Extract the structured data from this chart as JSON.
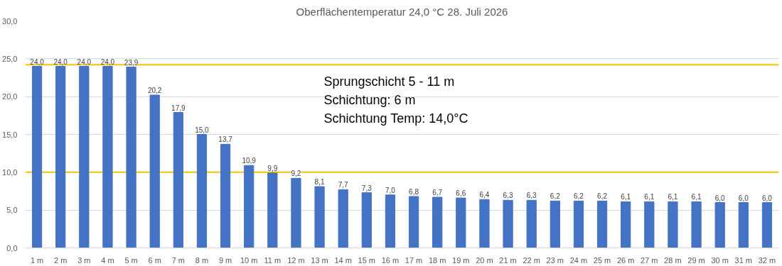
{
  "chart_data": {
    "type": "bar",
    "title": "Oberflächentemperatur 24,0 °C 28. Juli 2026",
    "categories": [
      "1 m",
      "2 m",
      "3 m",
      "4 m",
      "5 m",
      "6 m",
      "7 m",
      "8 m",
      "9 m",
      "10 m",
      "11 m",
      "12 m",
      "13 m",
      "14 m",
      "15 m",
      "16 m",
      "17 m",
      "18 m",
      "19 m",
      "20 m",
      "21 m",
      "22 m",
      "23 m",
      "24 m",
      "25 m",
      "26 m",
      "27 m",
      "28 m",
      "29 m",
      "30 m",
      "31 m",
      "32 m"
    ],
    "values": [
      24.0,
      24.0,
      24.0,
      24.0,
      23.9,
      20.2,
      17.9,
      15.0,
      13.7,
      10.9,
      9.9,
      9.2,
      8.1,
      7.7,
      7.3,
      7.0,
      6.8,
      6.7,
      6.6,
      6.4,
      6.3,
      6.3,
      6.2,
      6.2,
      6.2,
      6.1,
      6.1,
      6.1,
      6.1,
      6.0,
      6.0,
      6.0
    ],
    "value_labels": [
      "24,0",
      "24,0",
      "24,0",
      "24,0",
      "23,9",
      "20,2",
      "17,9",
      "15,0",
      "13,7",
      "10,9",
      "9,9",
      "9,2",
      "8,1",
      "7,7",
      "7,3",
      "7,0",
      "6,8",
      "6,7",
      "6,6",
      "6,4",
      "6,3",
      "6,3",
      "6,2",
      "6,2",
      "6,2",
      "6,1",
      "6,1",
      "6,1",
      "6,1",
      "6,0",
      "6,0",
      "6,0"
    ],
    "color": "#4472c4",
    "ylim": [
      0,
      30
    ],
    "yticks": [
      {
        "value": 0,
        "label": "0,0"
      },
      {
        "value": 5,
        "label": "5,0"
      },
      {
        "value": 10,
        "label": "10,0"
      },
      {
        "value": 15,
        "label": "15,0"
      },
      {
        "value": 20,
        "label": "20,0"
      },
      {
        "value": 25,
        "label": "25,0"
      },
      {
        "value": 30,
        "label": "30,0"
      }
    ],
    "grid": "y",
    "ref_lines": [
      {
        "axis": "y",
        "value": 24.2,
        "color": "#ffc000"
      },
      {
        "axis": "y",
        "value": 10.0,
        "color": "#ffc000"
      }
    ],
    "annotations": [
      "Sprungschicht 5 - 11 m",
      "Schichtung: 6 m",
      "Schichtung Temp: 14,0°C"
    ]
  }
}
